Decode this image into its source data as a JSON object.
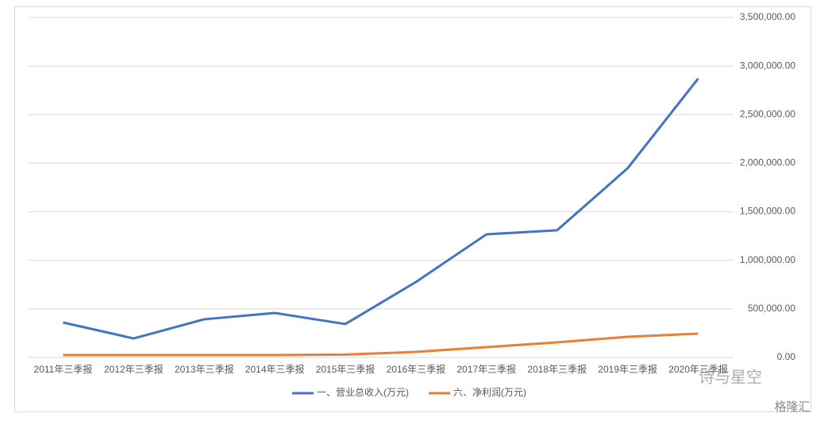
{
  "chart_data": {
    "type": "line",
    "categories": [
      "2011年三季报",
      "2012年三季报",
      "2013年三季报",
      "2014年三季报",
      "2015年三季报",
      "2016年三季报",
      "2017年三季报",
      "2018年三季报",
      "2019年三季报",
      "2020年三季报"
    ],
    "series": [
      {
        "name": "一、营业总收入(万元)",
        "color": "#4472c4",
        "values": [
          360000,
          196000,
          393000,
          458000,
          344000,
          777000,
          1268000,
          1309000,
          1948000,
          2872000
        ]
      },
      {
        "name": "六、净利润(万元)",
        "color": "#ed7d31",
        "values": [
          25000,
          25000,
          25000,
          25000,
          30000,
          57000,
          106000,
          155000,
          213000,
          245000
        ]
      }
    ],
    "ylim": [
      0,
      3500000
    ],
    "yticks": [
      {
        "value": 0,
        "label": "0.00"
      },
      {
        "value": 500000,
        "label": "500,000.00"
      },
      {
        "value": 1000000,
        "label": "1,000,000.00"
      },
      {
        "value": 1500000,
        "label": "1,500,000.00"
      },
      {
        "value": 2000000,
        "label": "2,000,000.00"
      },
      {
        "value": 2500000,
        "label": "2,500,000.00"
      },
      {
        "value": 3000000,
        "label": "3,000,000.00"
      },
      {
        "value": 3500000,
        "label": "3,500,000.00"
      }
    ],
    "grid": true,
    "legend": "bottom",
    "watermarks": [
      "诗与星空",
      "格隆汇"
    ]
  }
}
